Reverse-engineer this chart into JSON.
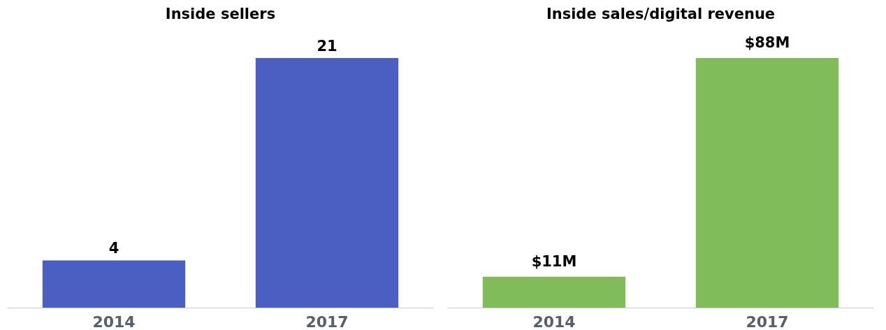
{
  "chart_data": [
    {
      "type": "bar",
      "title": "Inside sellers",
      "categories": [
        "2014",
        "2017"
      ],
      "values": [
        4,
        21
      ],
      "color": "#4a5fc1",
      "data_labels": true,
      "grid": false,
      "tick_labels": "x"
    },
    {
      "type": "bar",
      "title": "Inside sales/digital revenue",
      "categories": [
        "2014",
        "2017"
      ],
      "values": [
        11,
        88
      ],
      "value_labels": [
        "$11M",
        "$88M"
      ],
      "color": "#80bc5a",
      "grid": false,
      "tick_labels": "x"
    }
  ]
}
